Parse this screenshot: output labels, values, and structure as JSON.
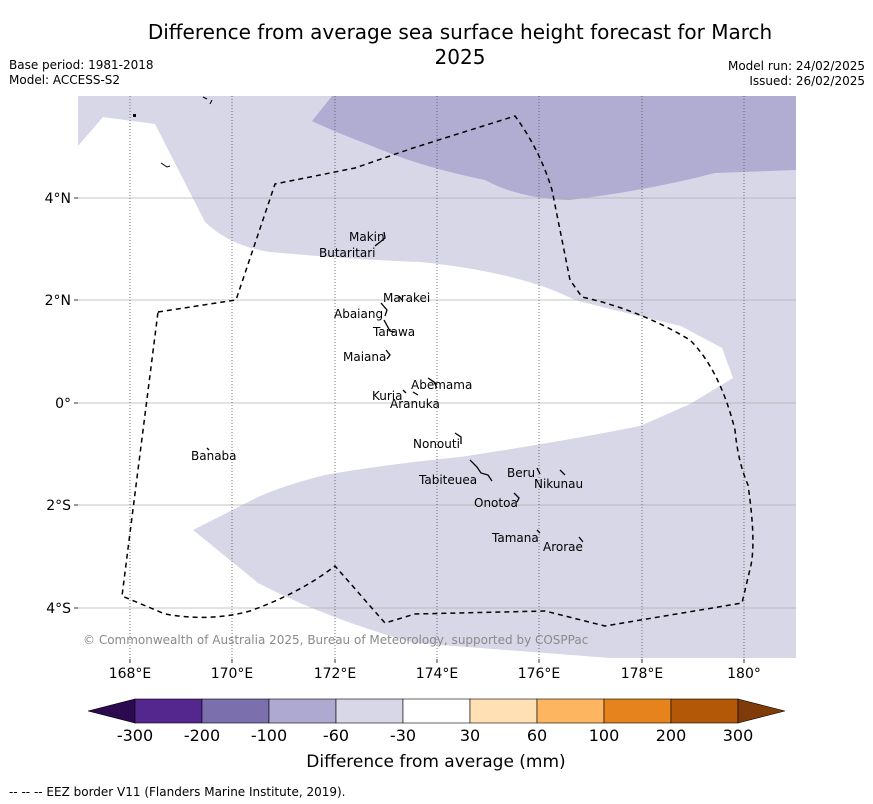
{
  "header": {
    "title": "Difference from average sea surface height forecast for March 2025",
    "base_period": "Base period: 1981-2018",
    "model": "Model: ACCESS-S2",
    "model_run": "Model run: 24/02/2025",
    "issued": "Issued: 26/02/2025"
  },
  "map": {
    "lat_labels": [
      "4°N",
      "2°N",
      "0°",
      "2°S",
      "4°S"
    ],
    "lon_labels": [
      "168°E",
      "170°E",
      "172°E",
      "174°E",
      "176°E",
      "178°E",
      "180°"
    ],
    "places": [
      "Makin",
      "Butaritari",
      "Marakei",
      "Abaiang",
      "Tarawa",
      "Maiana",
      "Abemama",
      "Kuria",
      "Aranuka",
      "Nonouti",
      "Banaba",
      "Beru",
      "Nikunau",
      "Tabiteuea",
      "Onotoa",
      "Tamana",
      "Arorae"
    ],
    "copyright": "© Commonwealth of Australia 2025, Bureau of Meteorology, supported by COSPPac"
  },
  "colorbar": {
    "label": "Difference from average (mm)",
    "ticks": [
      "-300",
      "-200",
      "-100",
      "-60",
      "-30",
      "30",
      "60",
      "100",
      "200",
      "300"
    ],
    "colors": {
      "below_-300": "#2d0a50",
      "-300_-200": "#54278f",
      "-200_-100": "#7c6fae",
      "-100_-60": "#ada9d1",
      "-60_-30": "#d7d7e8",
      "-30_30": "#ffffff",
      "30_60": "#fee0b4",
      "60_100": "#fdb55f",
      "100_200": "#e6831c",
      "200_300": "#b35806",
      "above_300": "#7f3b08"
    }
  },
  "footer": {
    "eez_note": "--  --  -- EEZ border V11 (Flanders Marine Institute, 2019)."
  }
}
